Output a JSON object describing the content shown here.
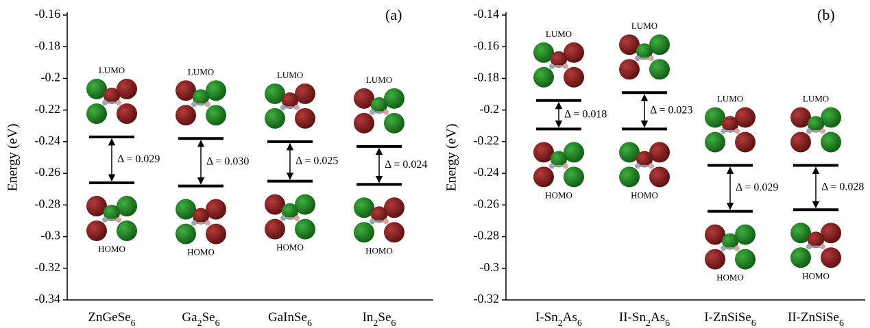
{
  "chart_data": [
    {
      "type": "level",
      "panel_label": "(a)",
      "y_label": "Energy (eV)",
      "categories": [
        "ZnGeSe6",
        "Ga2Se6",
        "GaInSe6",
        "In2Se6"
      ],
      "series": [
        {
          "name": "LUMO",
          "color": "#000000",
          "values": [
            -0.237,
            -0.238,
            -0.24,
            -0.243
          ]
        },
        {
          "name": "HOMO",
          "color": "#000000",
          "values": [
            -0.266,
            -0.268,
            -0.265,
            -0.267
          ]
        }
      ],
      "gap_labels": [
        "Δ = 0.029",
        "Δ = 0.030",
        "Δ = 0.025",
        "Δ = 0.024"
      ],
      "ylim": [
        -0.34,
        -0.16
      ],
      "yticks": [
        -0.34,
        -0.32,
        -0.3,
        -0.28,
        -0.26,
        -0.24,
        -0.22,
        -0.2,
        -0.18,
        -0.16
      ]
    },
    {
      "type": "level",
      "panel_label": "(b)",
      "y_label": "Energy (eV)",
      "categories": [
        "I-Sn2As6",
        "II-Sn2As6",
        "I-ZnSiSe6",
        "II-ZnSiSe6"
      ],
      "series": [
        {
          "name": "LUMO",
          "color": "#000000",
          "values": [
            -0.194,
            -0.189,
            -0.235,
            -0.235
          ]
        },
        {
          "name": "HOMO",
          "color": "#000000",
          "values": [
            -0.212,
            -0.212,
            -0.264,
            -0.263
          ]
        }
      ],
      "gap_labels": [
        "Δ = 0.018",
        "Δ = 0.023",
        "Δ = 0.029",
        "Δ = 0.028"
      ],
      "ylim": [
        -0.32,
        -0.14
      ],
      "yticks": [
        -0.32,
        -0.3,
        -0.28,
        -0.26,
        -0.24,
        -0.22,
        -0.2,
        -0.18,
        -0.16,
        -0.14
      ]
    }
  ]
}
